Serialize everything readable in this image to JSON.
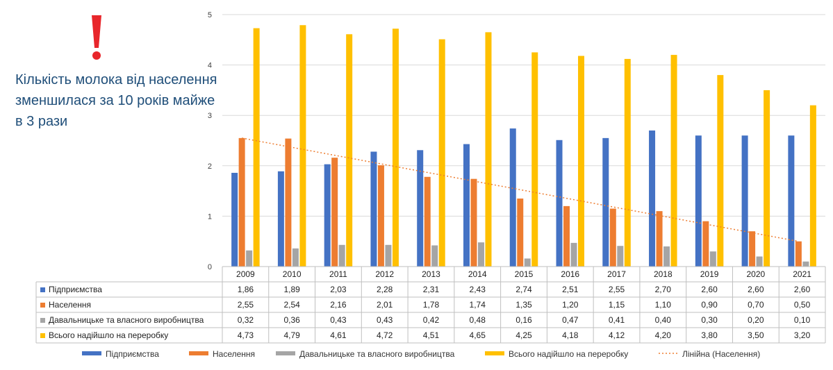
{
  "headline": "Кількість молока від населення зменшилася за 10 років майже в 3 рази",
  "colors": {
    "enterprises": "#4472c4",
    "population": "#ed7d31",
    "own_production": "#a5a5a5",
    "total": "#ffc000",
    "alert": "#e8262b",
    "headline": "#1f4e79"
  },
  "chart_data": {
    "type": "bar",
    "categories": [
      "2009",
      "2010",
      "2011",
      "2012",
      "2013",
      "2014",
      "2015",
      "2016",
      "2017",
      "2018",
      "2019",
      "2020",
      "2021"
    ],
    "y_ticks": [
      "0",
      "1",
      "2",
      "3",
      "4",
      "5"
    ],
    "ylim": [
      0,
      5
    ],
    "series": [
      {
        "name": "Підприємства",
        "color_key": "enterprises",
        "values": [
          1.86,
          1.89,
          2.03,
          2.28,
          2.31,
          2.43,
          2.74,
          2.51,
          2.55,
          2.7,
          2.6,
          2.6,
          2.6
        ],
        "labels": [
          "1,86",
          "1,89",
          "2,03",
          "2,28",
          "2,31",
          "2,43",
          "2,74",
          "2,51",
          "2,55",
          "2,70",
          "2,60",
          "2,60",
          "2,60"
        ]
      },
      {
        "name": "Населення",
        "color_key": "population",
        "values": [
          2.55,
          2.54,
          2.16,
          2.01,
          1.78,
          1.74,
          1.35,
          1.2,
          1.15,
          1.1,
          0.9,
          0.7,
          0.5
        ],
        "labels": [
          "2,55",
          "2,54",
          "2,16",
          "2,01",
          "1,78",
          "1,74",
          "1,35",
          "1,20",
          "1,15",
          "1,10",
          "0,90",
          "0,70",
          "0,50"
        ]
      },
      {
        "name": "Давальницьке та власного виробництва",
        "color_key": "own_production",
        "values": [
          0.32,
          0.36,
          0.43,
          0.43,
          0.42,
          0.48,
          0.16,
          0.47,
          0.41,
          0.4,
          0.3,
          0.2,
          0.1
        ],
        "labels": [
          "0,32",
          "0,36",
          "0,43",
          "0,43",
          "0,42",
          "0,48",
          "0,16",
          "0,47",
          "0,41",
          "0,40",
          "0,30",
          "0,20",
          "0,10"
        ]
      },
      {
        "name": "Всього надійшло на переробку",
        "color_key": "total",
        "values": [
          4.73,
          4.79,
          4.61,
          4.72,
          4.51,
          4.65,
          4.25,
          4.18,
          4.12,
          4.2,
          3.8,
          3.5,
          3.2
        ],
        "labels": [
          "4,73",
          "4,79",
          "4,61",
          "4,72",
          "4,51",
          "4,65",
          "4,25",
          "4,18",
          "4,12",
          "4,20",
          "3,80",
          "3,50",
          "3,20"
        ]
      }
    ],
    "trendline": {
      "name": "Лінійна (Населення)",
      "series": "Населення",
      "type": "linear",
      "start": 2.55,
      "end": 0.5
    },
    "legend_position": "bottom",
    "data_table": true
  }
}
